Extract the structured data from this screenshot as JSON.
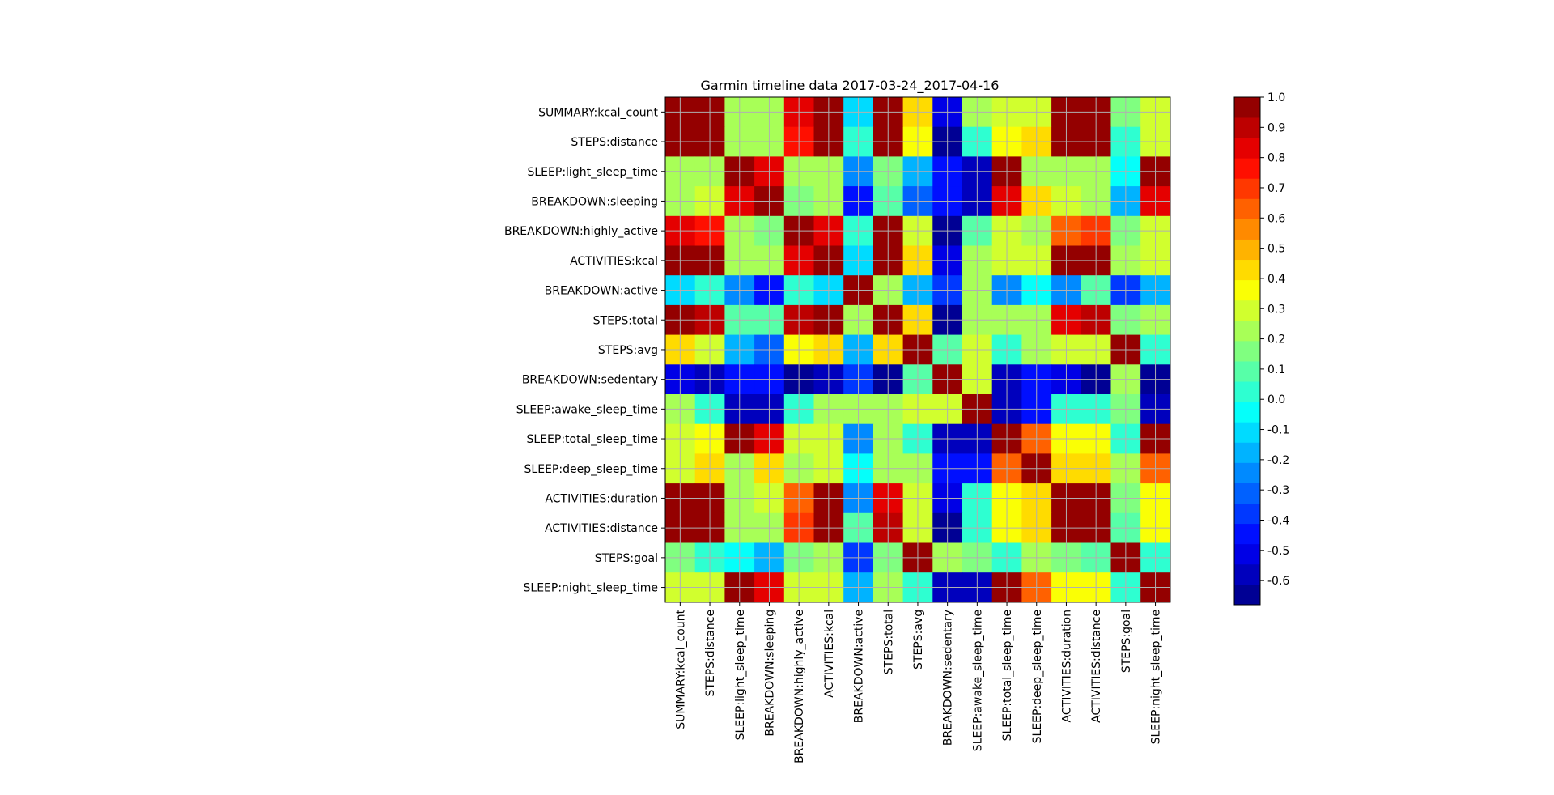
{
  "figure": {
    "background": "#ffffff",
    "grid_color": "#b0b0b0"
  },
  "chart_data": {
    "type": "heatmap",
    "title": "Garmin timeline data 2017-03-24_2017-04-16",
    "colormap": "jet",
    "vmin": -0.68,
    "vmax": 1.0,
    "grid": true,
    "labels": [
      "SUMMARY:kcal_count",
      "STEPS:distance",
      "SLEEP:light_sleep_time",
      "BREAKDOWN:sleeping",
      "BREAKDOWN:highly_active",
      "ACTIVITIES:kcal",
      "BREAKDOWN:active",
      "STEPS:total",
      "STEPS:avg",
      "BREAKDOWN:sedentary",
      "SLEEP:awake_sleep_time",
      "SLEEP:total_sleep_time",
      "SLEEP:deep_sleep_time",
      "ACTIVITIES:duration",
      "ACTIVITIES:distance",
      "STEPS:goal",
      "SLEEP:night_sleep_time"
    ],
    "values": [
      [
        1.0,
        1.0,
        0.2,
        0.25,
        0.8,
        1.0,
        -0.1,
        0.95,
        0.4,
        -0.5,
        0.2,
        0.3,
        0.3,
        1.0,
        1.0,
        0.15,
        0.3
      ],
      [
        1.0,
        1.0,
        0.2,
        0.25,
        0.75,
        1.0,
        0.05,
        0.95,
        0.35,
        -0.62,
        0.05,
        0.35,
        0.4,
        1.0,
        1.0,
        0.05,
        0.3
      ],
      [
        0.2,
        0.2,
        1.0,
        0.8,
        0.2,
        0.2,
        -0.25,
        0.15,
        -0.2,
        -0.45,
        -0.55,
        0.95,
        0.25,
        0.2,
        0.2,
        -0.05,
        0.95
      ],
      [
        0.25,
        0.3,
        0.8,
        1.0,
        0.15,
        0.2,
        -0.45,
        0.1,
        -0.3,
        -0.45,
        -0.55,
        0.8,
        0.45,
        0.3,
        0.25,
        -0.15,
        0.8
      ],
      [
        0.8,
        0.75,
        0.25,
        0.15,
        1.0,
        0.85,
        0.05,
        0.95,
        0.3,
        -0.62,
        0.1,
        0.3,
        0.25,
        0.6,
        0.7,
        0.15,
        0.3
      ],
      [
        1.0,
        1.0,
        0.2,
        0.2,
        0.85,
        1.0,
        -0.1,
        1.0,
        0.4,
        -0.5,
        0.2,
        0.3,
        0.3,
        1.0,
        1.0,
        0.2,
        0.3
      ],
      [
        -0.1,
        0.05,
        -0.25,
        -0.45,
        0.05,
        -0.1,
        1.0,
        0.2,
        -0.15,
        -0.4,
        0.2,
        -0.25,
        -0.05,
        -0.25,
        0.1,
        -0.4,
        -0.2
      ],
      [
        0.95,
        0.9,
        0.1,
        0.1,
        0.9,
        0.95,
        0.2,
        1.0,
        0.45,
        -0.62,
        0.2,
        0.25,
        0.25,
        0.85,
        0.9,
        0.15,
        0.25
      ],
      [
        0.4,
        0.3,
        -0.2,
        -0.3,
        0.35,
        0.4,
        -0.15,
        0.45,
        1.0,
        0.1,
        0.3,
        0.0,
        0.2,
        0.3,
        0.3,
        1.0,
        0.0
      ],
      [
        -0.5,
        -0.6,
        -0.45,
        -0.45,
        -0.62,
        -0.55,
        -0.4,
        -0.62,
        0.1,
        1.0,
        0.3,
        -0.6,
        -0.45,
        -0.5,
        -0.62,
        0.25,
        -0.62
      ],
      [
        0.2,
        0.05,
        -0.55,
        -0.55,
        0.05,
        0.2,
        0.2,
        0.2,
        0.3,
        0.3,
        1.0,
        -0.55,
        -0.45,
        0.05,
        0.05,
        0.15,
        -0.55
      ],
      [
        0.3,
        0.35,
        0.95,
        0.8,
        0.3,
        0.3,
        -0.25,
        0.25,
        0.0,
        -0.6,
        -0.55,
        1.0,
        0.65,
        0.35,
        0.35,
        0.05,
        1.0
      ],
      [
        0.3,
        0.4,
        0.25,
        0.45,
        0.25,
        0.3,
        -0.05,
        0.25,
        0.2,
        -0.45,
        -0.45,
        0.65,
        1.0,
        0.4,
        0.4,
        0.25,
        0.65
      ],
      [
        1.0,
        1.0,
        0.2,
        0.3,
        0.6,
        1.0,
        -0.25,
        0.85,
        0.3,
        -0.5,
        0.05,
        0.35,
        0.4,
        1.0,
        1.0,
        0.15,
        0.35
      ],
      [
        1.0,
        1.0,
        0.2,
        0.25,
        0.7,
        1.0,
        0.1,
        0.9,
        0.3,
        -0.62,
        0.05,
        0.35,
        0.4,
        1.0,
        1.0,
        0.1,
        0.35
      ],
      [
        0.15,
        0.05,
        -0.05,
        -0.15,
        0.15,
        0.2,
        -0.4,
        0.15,
        1.0,
        0.25,
        0.15,
        0.05,
        0.25,
        0.15,
        0.1,
        1.0,
        0.05
      ],
      [
        0.3,
        0.3,
        0.95,
        0.8,
        0.3,
        0.3,
        -0.2,
        0.25,
        0.0,
        -0.6,
        -0.55,
        1.0,
        0.65,
        0.35,
        0.35,
        0.05,
        1.0
      ]
    ],
    "colorbar_ticks": [
      1.0,
      0.9,
      0.8,
      0.7,
      0.6,
      0.5,
      0.4,
      0.3,
      0.2,
      0.1,
      0.0,
      -0.1,
      -0.2,
      -0.3,
      -0.4,
      -0.5,
      -0.6
    ],
    "colorbar_tick_labels": [
      "1.0",
      "0.9",
      "0.8",
      "0.7",
      "0.6",
      "0.5",
      "0.4",
      "0.3",
      "0.2",
      "0.1",
      "0.0",
      "-0.1",
      "-0.2",
      "-0.3",
      "-0.4",
      "-0.5",
      "-0.6"
    ]
  }
}
